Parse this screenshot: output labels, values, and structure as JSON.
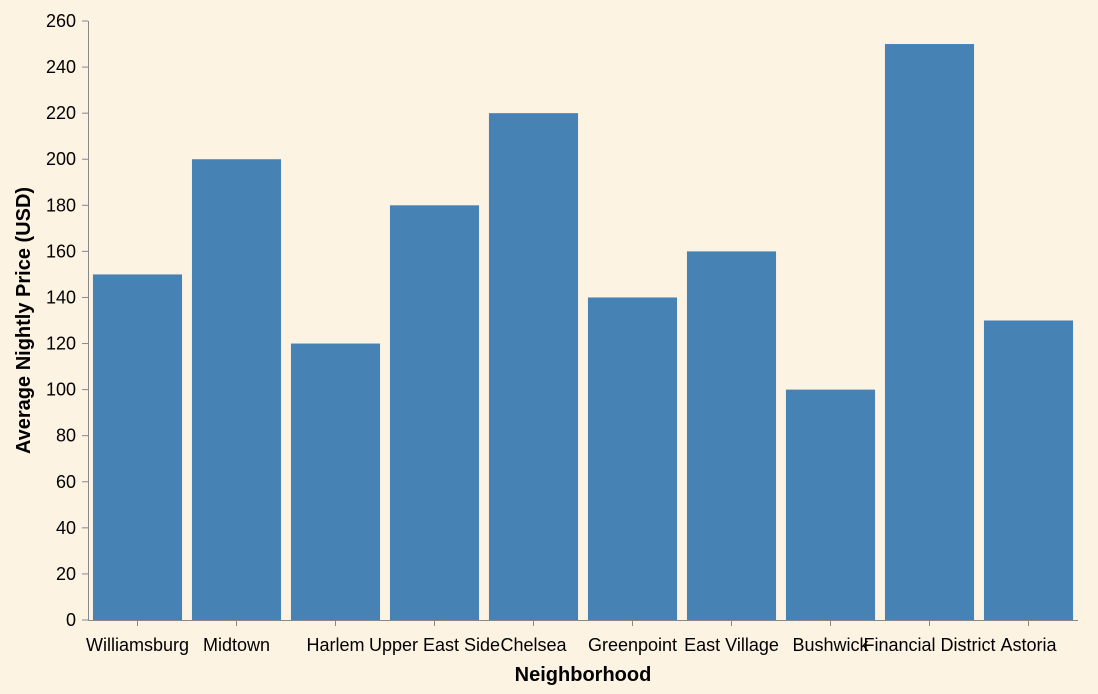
{
  "chart_data": {
    "type": "bar",
    "title": "",
    "xlabel": "Neighborhood",
    "ylabel": "Average Nightly Price (USD)",
    "categories": [
      "Williamsburg",
      "Midtown",
      "Harlem",
      "Upper East Side",
      "Chelsea",
      "Greenpoint",
      "East Village",
      "Bushwick",
      "Financial District",
      "Astoria"
    ],
    "values": [
      150,
      200,
      120,
      180,
      220,
      140,
      160,
      100,
      250,
      130
    ],
    "ylim": [
      0,
      260
    ],
    "yticks": [
      0,
      20,
      40,
      60,
      80,
      100,
      120,
      140,
      160,
      180,
      200,
      220,
      240,
      260
    ],
    "grid": false,
    "bar_color": "#4682b4",
    "axis_color": "#888888",
    "background": "#fdf3e3"
  }
}
